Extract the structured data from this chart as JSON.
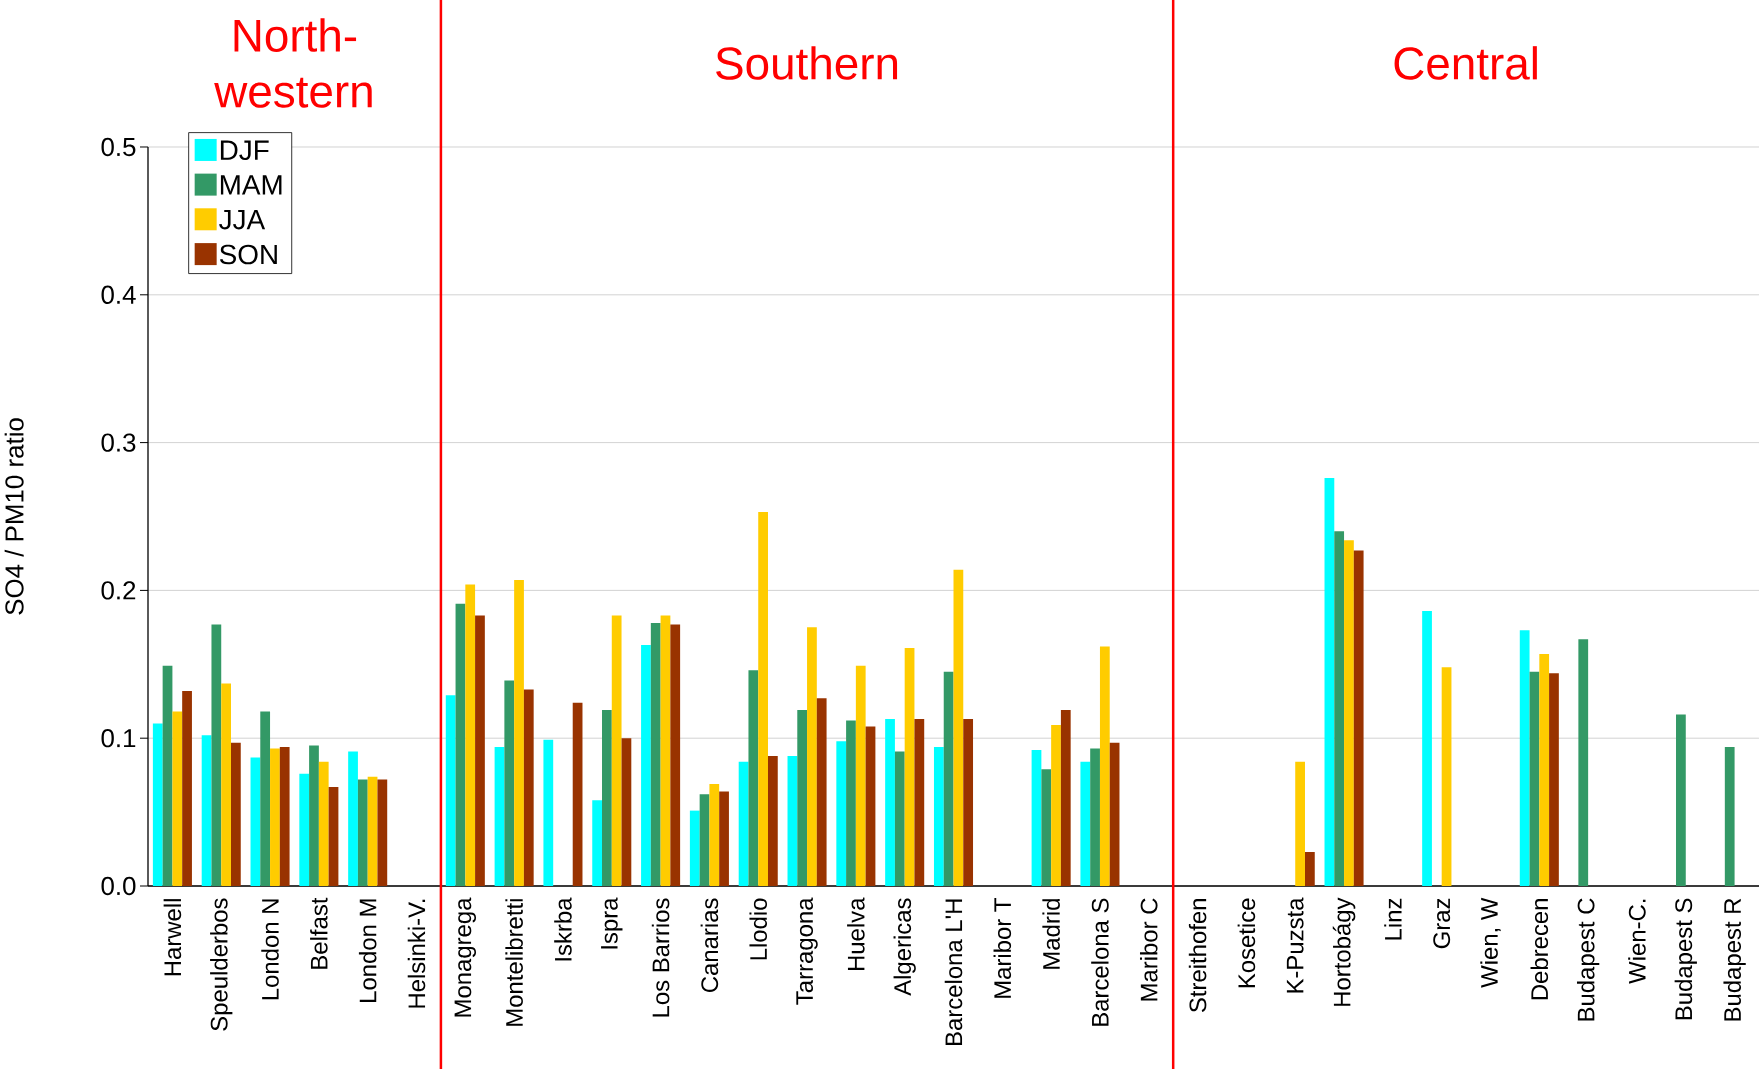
{
  "chart_data": {
    "type": "bar",
    "ylabel": "SO4 / PM10 ratio",
    "categories": [
      "Harwell",
      "Speulderbos",
      "London N",
      "Belfast",
      "London M",
      "Helsinki-V.",
      "Monagrega",
      "Montelibretti",
      "Iskrba",
      "Ispra",
      "Los Barrios",
      "Canarias",
      "Llodio",
      "Tarragona",
      "Huelva",
      "Algericas",
      "Barcelona L'H",
      "Maribor T",
      "Madrid",
      "Barcelona S",
      "Maribor C",
      "Streithofen",
      "Kosetice",
      "K-Puzsta",
      "Hortobágy",
      "Linz",
      "Graz",
      "Wien, W",
      "Debrecen",
      "Budapest C",
      "Wien-C.",
      "Budapest S",
      "Budapest R"
    ],
    "series": [
      {
        "name": "DJF",
        "color": "#00ffff",
        "values": [
          0.11,
          0.102,
          0.087,
          0.076,
          0.091,
          null,
          0.129,
          0.094,
          0.099,
          0.058,
          0.163,
          0.051,
          0.084,
          0.088,
          0.098,
          0.113,
          0.094,
          null,
          0.092,
          0.084,
          null,
          null,
          null,
          null,
          0.276,
          null,
          0.186,
          null,
          0.173,
          null,
          null,
          null,
          null
        ]
      },
      {
        "name": "MAM",
        "color": "#339966",
        "values": [
          0.149,
          0.177,
          0.118,
          0.095,
          0.072,
          null,
          0.191,
          0.139,
          null,
          0.119,
          0.178,
          0.062,
          0.146,
          0.119,
          0.112,
          0.091,
          0.145,
          null,
          0.079,
          0.093,
          null,
          null,
          null,
          null,
          0.24,
          null,
          null,
          null,
          0.145,
          0.167,
          null,
          0.116,
          0.094
        ]
      },
      {
        "name": "JJA",
        "color": "#ffcc00",
        "values": [
          0.118,
          0.137,
          0.093,
          0.084,
          0.074,
          null,
          0.204,
          0.207,
          null,
          0.183,
          0.183,
          0.069,
          0.253,
          0.175,
          0.149,
          0.161,
          0.214,
          null,
          0.109,
          0.162,
          null,
          null,
          null,
          0.084,
          0.234,
          null,
          0.148,
          null,
          0.157,
          null,
          null,
          null,
          null
        ]
      },
      {
        "name": "SON",
        "color": "#993300",
        "values": [
          0.132,
          0.097,
          0.094,
          0.067,
          0.072,
          null,
          0.183,
          0.133,
          0.124,
          0.1,
          0.177,
          0.064,
          0.088,
          0.127,
          0.108,
          0.113,
          0.113,
          null,
          0.119,
          0.097,
          null,
          null,
          null,
          0.023,
          0.227,
          null,
          null,
          null,
          0.144,
          null,
          null,
          null,
          null
        ]
      }
    ],
    "ylim": [
      0,
      0.5
    ],
    "yticks": [
      {
        "value": 0,
        "label": "0.0"
      },
      0.1,
      0.2,
      0.3,
      0.4,
      0.5
    ],
    "grid": "y",
    "legend": "top left",
    "annotations": [
      "North-western",
      "Southern",
      "Central"
    ]
  }
}
